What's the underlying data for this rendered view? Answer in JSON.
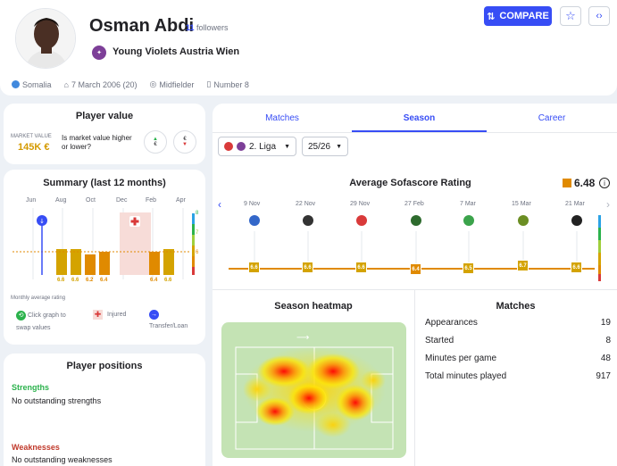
{
  "player": {
    "name": "Osman Abdi",
    "followers_count": "11",
    "followers_label": "followers",
    "team": "Young Violets Austria Wien",
    "nationality": "Somalia",
    "birth": "7 March 2006 (20)",
    "position": "Midfielder",
    "number": "Number 8"
  },
  "header": {
    "compare_label": "COMPARE",
    "star_icon": "star-icon",
    "embed_icon": "code-icon"
  },
  "player_value": {
    "title": "Player value",
    "market_value_label": "MARKET VALUE",
    "market_value": "145K €",
    "question": "Is market value higher or lower?"
  },
  "summary": {
    "title": "Summary (last 12 months)",
    "months": [
      "Jun",
      "Aug",
      "Oct",
      "Dec",
      "Feb",
      "Apr"
    ],
    "bar_labels": [
      "6.6",
      "6.6",
      "6.2",
      "6.4",
      "6.4",
      "6.6"
    ],
    "scale_labels": [
      "8",
      "7",
      "6"
    ],
    "monthly_avg_label": "Monthly average rating",
    "legend_click": "Click graph to swap values",
    "legend_injured": "Injured",
    "legend_transfer": "Transfer/Loan"
  },
  "positions": {
    "title": "Player positions",
    "strengths_label": "Strengths",
    "strengths_text": "No outstanding strengths",
    "weaknesses_label": "Weaknesses",
    "weaknesses_text": "No outstanding weaknesses"
  },
  "tabs": [
    "Matches",
    "Season",
    "Career"
  ],
  "filters": {
    "league": "2. Liga",
    "season": "25/26"
  },
  "rating": {
    "title": "Average Sofascore Rating",
    "average": "6.48",
    "dates": [
      "9 Nov",
      "22 Nov",
      "29 Nov",
      "27 Feb",
      "7 Mar",
      "15 Mar",
      "21 Mar"
    ],
    "values": [
      "6.6",
      "6.6",
      "6.6",
      "6.4",
      "6.5",
      "6.7",
      "6.6"
    ]
  },
  "heatmap": {
    "title": "Season heatmap"
  },
  "matches": {
    "title": "Matches",
    "rows": [
      {
        "label": "Appearances",
        "value": "19"
      },
      {
        "label": "Started",
        "value": "8"
      },
      {
        "label": "Minutes per game",
        "value": "48"
      },
      {
        "label": "Total minutes played",
        "value": "917"
      }
    ]
  },
  "colors": {
    "accent": "#374df5",
    "rating_gold": "#d4a300",
    "rating_orange": "#e08a00",
    "injury": "#d93a3a"
  }
}
